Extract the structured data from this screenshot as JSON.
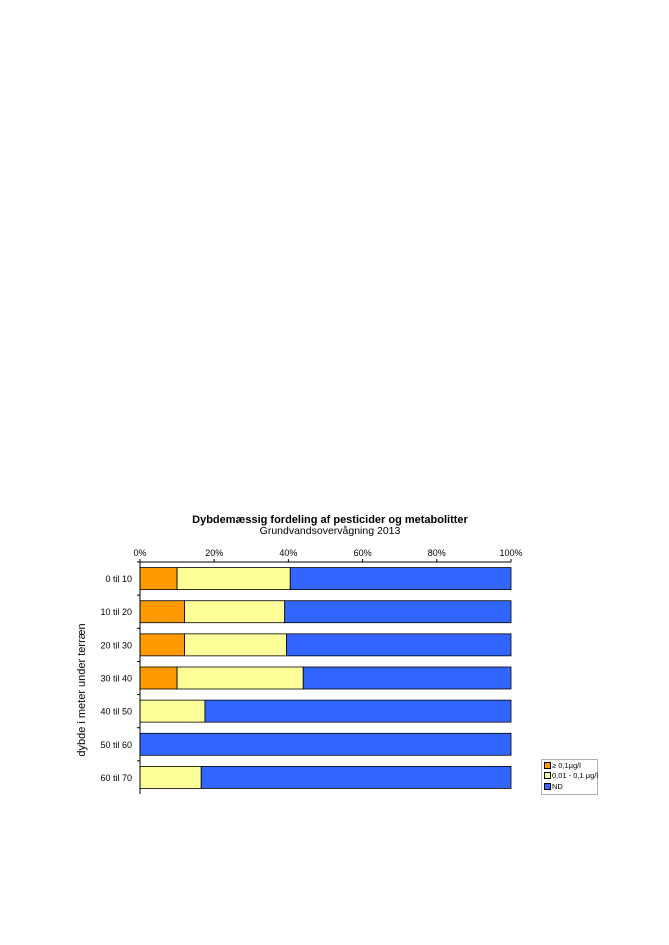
{
  "chart_data": {
    "type": "bar",
    "orientation": "horizontal",
    "stacked": "percent",
    "title": "Dybdemæssig  fordeling af pesticider og metabolitter",
    "subtitle": "Grundvandsovervågning  2013",
    "ylabel": "dybde i meter under  terræn",
    "xlabel": "",
    "xlim": [
      0,
      100
    ],
    "x_ticks": [
      "0%",
      "20%",
      "40%",
      "60%",
      "80%",
      "100%"
    ],
    "x_tick_values": [
      0,
      20,
      40,
      60,
      80,
      100
    ],
    "x_axis_position": "top",
    "grid": false,
    "legend_position": "bottom-right",
    "categories": [
      "0 til 10",
      "10 til 20",
      "20 til 30",
      "30 til 40",
      "40 til 50",
      "50 til 60",
      "60 til 70"
    ],
    "series": [
      {
        "name": "≥ 0,1μg/l",
        "color": "#ff9900",
        "values": [
          10,
          12,
          12,
          10,
          0,
          0,
          0
        ]
      },
      {
        "name": "0,01 - 0,1 μg/l",
        "color": "#ffff99",
        "values": [
          30.5,
          27,
          27.5,
          34,
          17.5,
          0,
          16.5
        ]
      },
      {
        "name": "ND",
        "color": "#3366ff",
        "values": [
          59.5,
          61,
          60.5,
          56,
          82.5,
          100,
          83.5
        ]
      }
    ]
  }
}
